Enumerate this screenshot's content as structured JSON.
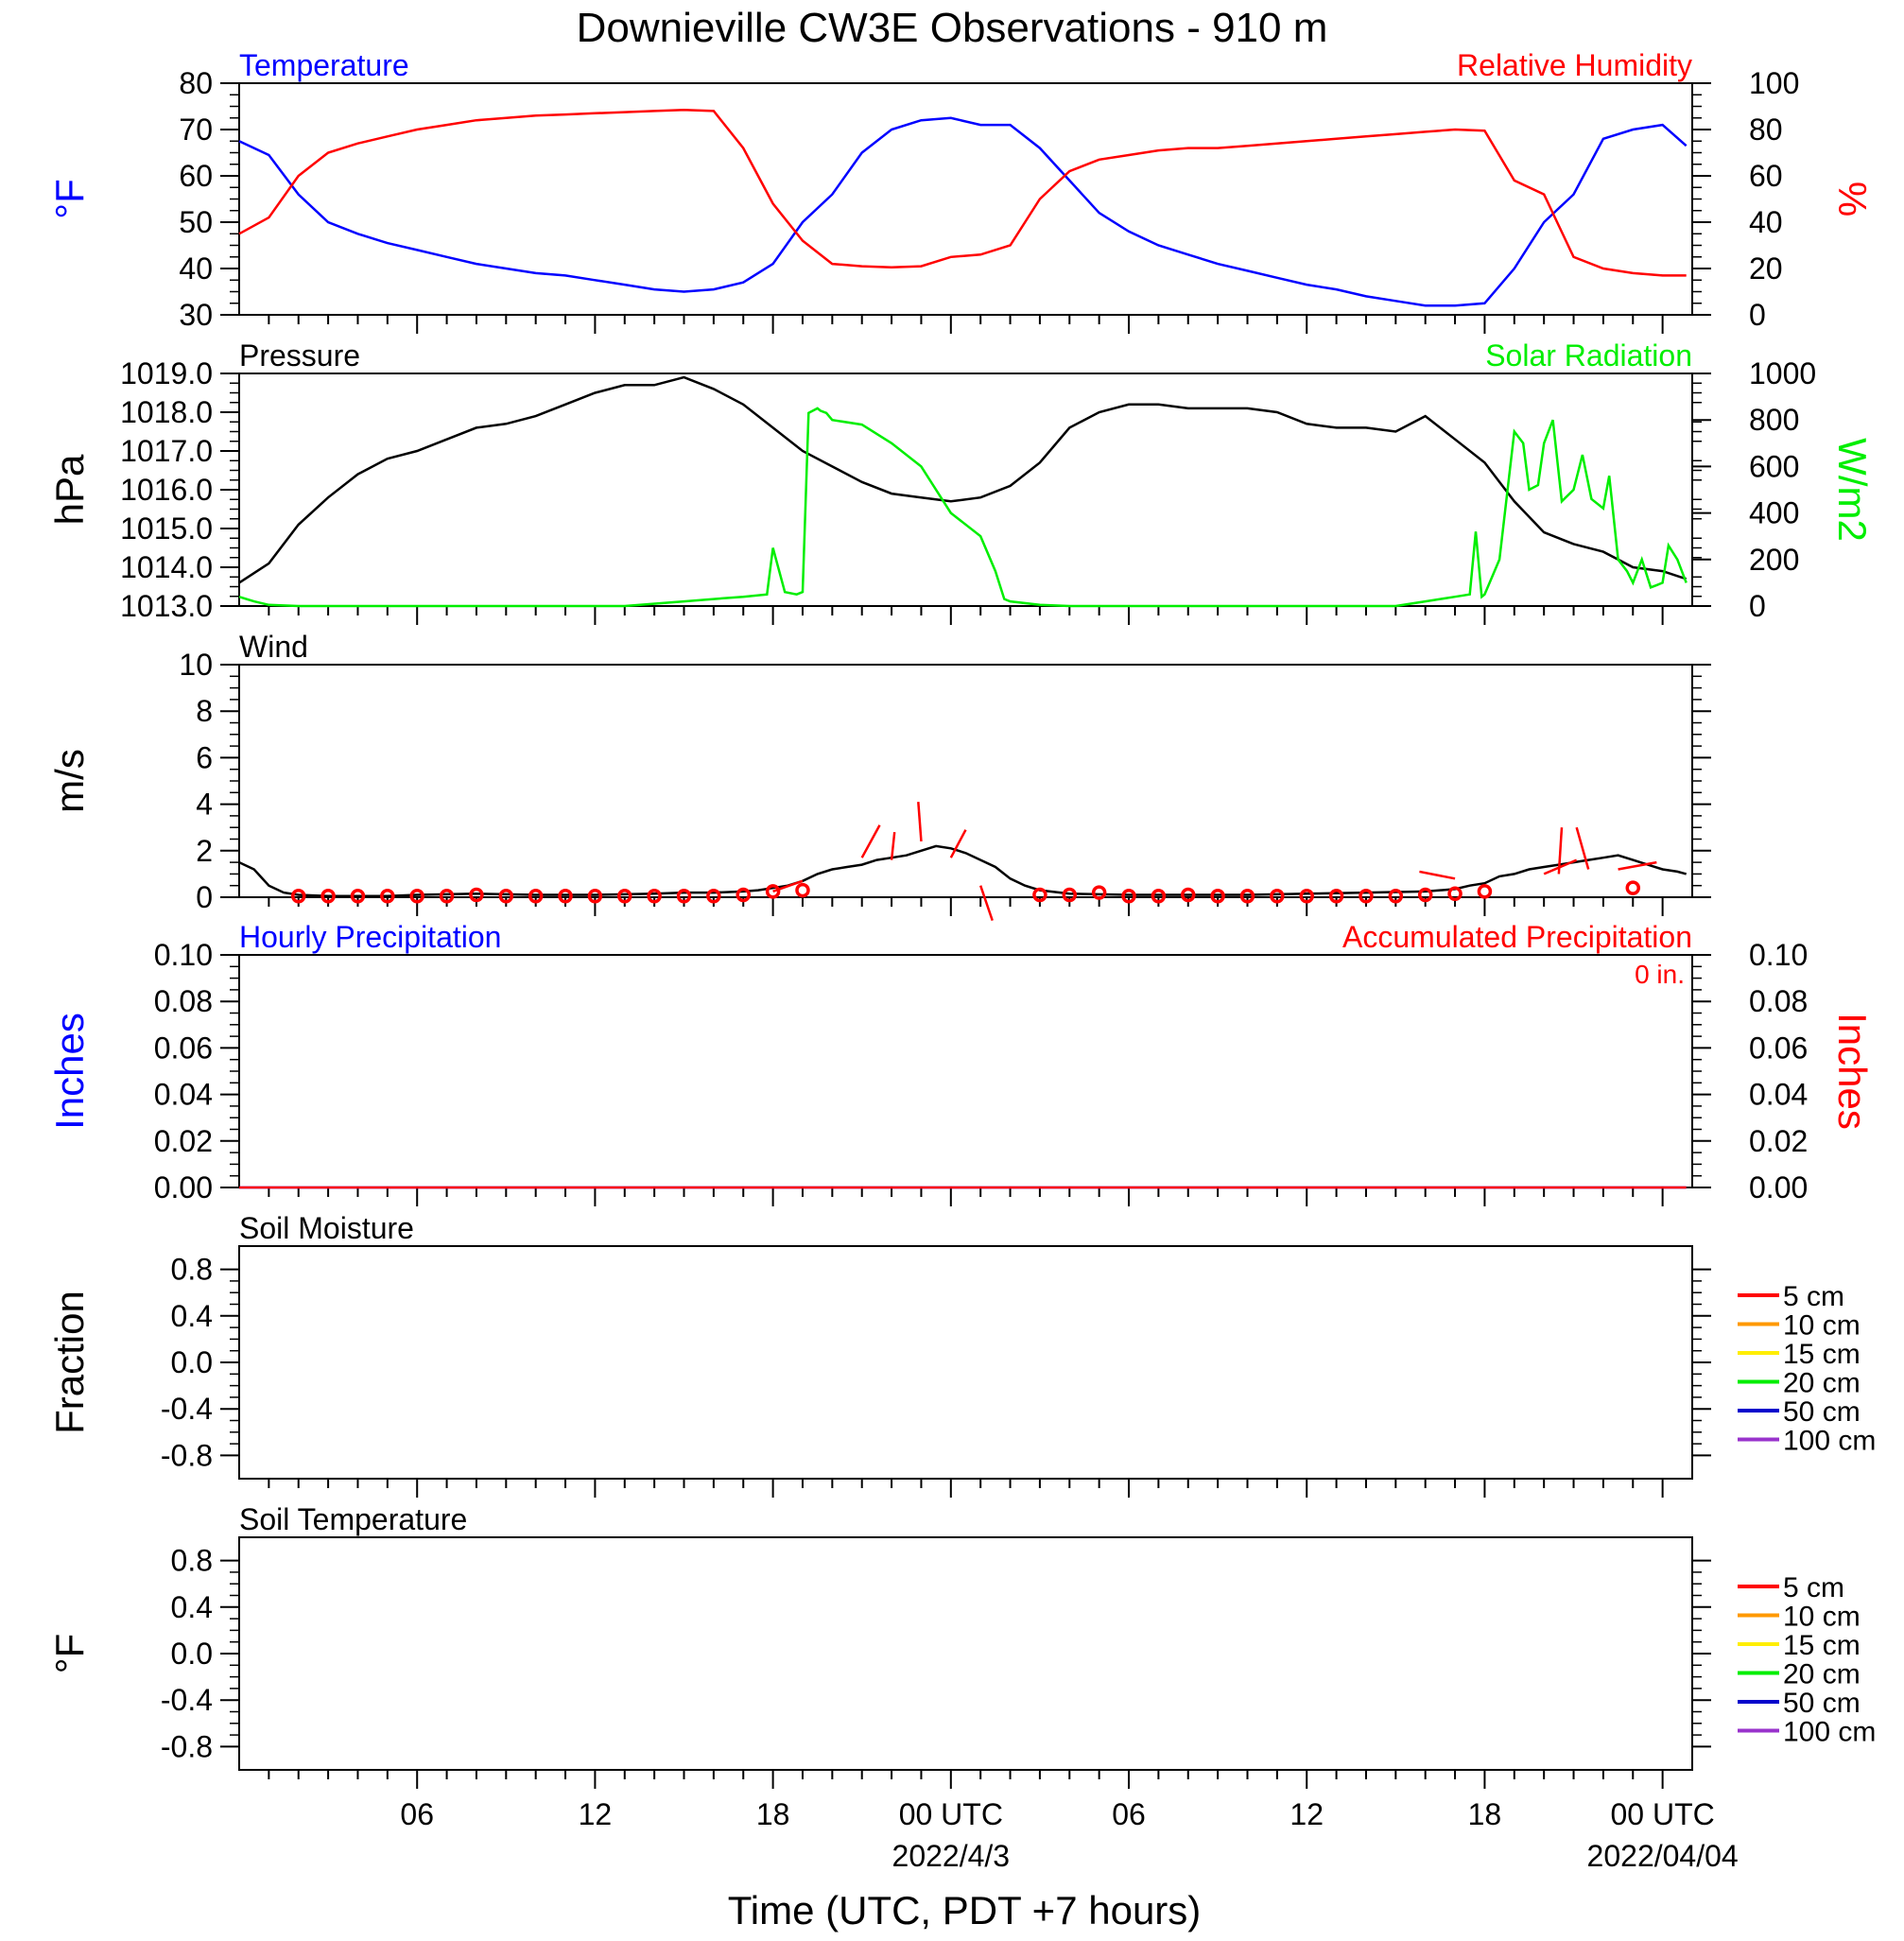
{
  "title": "Downieville CW3E Observations - 910 m",
  "xlabel": "Time (UTC, PDT +7 hours)",
  "x_ticks": {
    "labels": [
      "06",
      "12",
      "18",
      "00 UTC",
      "06",
      "12",
      "18",
      "00 UTC"
    ],
    "hours": [
      6,
      12,
      18,
      24,
      30,
      36,
      42,
      48
    ],
    "dates": [
      {
        "hour": 24,
        "text": "2022/4/3"
      },
      {
        "hour": 48,
        "text": "2022/04/04"
      }
    ]
  },
  "x_range_hours": [
    0,
    49
  ],
  "colors": {
    "temperature": "#0000ff",
    "humidity": "#ff0000",
    "pressure": "#000000",
    "solar": "#00ee00",
    "wind": "#000000",
    "wind_barbs": "#ff0000",
    "hourly_precip": "#0000ff",
    "accum_precip": "#ff0000",
    "soil_5": "#ff0000",
    "soil_10": "#ff9900",
    "soil_15": "#ffee00",
    "soil_20": "#00ee00",
    "soil_50": "#0000cc",
    "soil_100": "#9933cc"
  },
  "chart_data": [
    {
      "type": "line",
      "left_title": "Temperature",
      "right_title": "Relative Humidity",
      "ylabel_left": "°F",
      "ylabel_right": "%",
      "ylim_left": [
        30,
        80
      ],
      "yticks_left": [
        "30",
        "40",
        "50",
        "60",
        "70",
        "80"
      ],
      "ylim_right": [
        0,
        100
      ],
      "yticks_right": [
        "0",
        "20",
        "40",
        "60",
        "80",
        "100"
      ],
      "series": [
        {
          "name": "Temperature",
          "axis": "left",
          "color": "#0000ff",
          "x": [
            0,
            1,
            2,
            3,
            4,
            5,
            6,
            7,
            8,
            9,
            10,
            11,
            12,
            13,
            14,
            15,
            16,
            17,
            18,
            19,
            20,
            21,
            22,
            23,
            24,
            25,
            26,
            27,
            28,
            29,
            30,
            31,
            32,
            33,
            34,
            35,
            36,
            37,
            38,
            39,
            40,
            41,
            42,
            43,
            44,
            45,
            46,
            47,
            48,
            48.8
          ],
          "y": [
            67.5,
            64.5,
            56,
            50,
            47.5,
            45.5,
            44,
            42.5,
            41,
            40,
            39,
            38.5,
            37.5,
            36.5,
            35.5,
            35,
            35.5,
            37,
            41,
            50,
            56,
            65,
            70,
            72,
            72.5,
            71,
            71,
            66,
            59,
            52,
            48,
            45,
            43,
            41,
            39.5,
            38,
            36.5,
            35.5,
            34,
            33,
            32,
            32,
            32.5,
            40,
            50,
            56,
            68,
            70,
            71,
            66.5
          ]
        },
        {
          "name": "Relative Humidity",
          "axis": "right",
          "color": "#ff0000",
          "x": [
            0,
            1,
            2,
            3,
            4,
            5,
            6,
            7,
            8,
            9,
            10,
            11,
            12,
            13,
            14,
            15,
            16,
            17,
            18,
            19,
            20,
            21,
            22,
            23,
            24,
            25,
            26,
            27,
            28,
            29,
            30,
            31,
            32,
            33,
            34,
            35,
            36,
            37,
            38,
            39,
            40,
            41,
            42,
            43,
            44,
            45,
            46,
            47,
            48,
            48.8
          ],
          "y": [
            35,
            42,
            60,
            70,
            74,
            77,
            80,
            82,
            84,
            85,
            86,
            86.5,
            87,
            87.5,
            88,
            88.5,
            88,
            72,
            48,
            32,
            22,
            21,
            20.5,
            21,
            25,
            26,
            30,
            50,
            62,
            67,
            69,
            71,
            72,
            72,
            73,
            74,
            75,
            76,
            77,
            78,
            79,
            80,
            79.5,
            58,
            52,
            25,
            20,
            18,
            17,
            17
          ]
        }
      ]
    },
    {
      "type": "line",
      "left_title": "Pressure",
      "right_title": "Solar Radiation",
      "ylabel_left": "hPa",
      "ylabel_right": "W/m2",
      "ylim_left": [
        1013,
        1019
      ],
      "yticks_left": [
        "1013.0",
        "1014.0",
        "1015.0",
        "1016.0",
        "1017.0",
        "1018.0",
        "1019.0"
      ],
      "ylim_right": [
        0,
        1000
      ],
      "yticks_right": [
        "0",
        "200",
        "400",
        "600",
        "800",
        "1000"
      ],
      "series": [
        {
          "name": "Pressure",
          "axis": "left",
          "color": "#000000",
          "x": [
            0,
            1,
            2,
            3,
            4,
            5,
            6,
            7,
            8,
            9,
            10,
            11,
            12,
            13,
            14,
            15,
            16,
            17,
            18,
            19,
            20,
            21,
            22,
            23,
            24,
            25,
            26,
            27,
            28,
            29,
            30,
            31,
            32,
            33,
            34,
            35,
            36,
            37,
            38,
            39,
            40,
            41,
            42,
            43,
            44,
            45,
            46,
            47,
            48,
            48.8
          ],
          "y": [
            1013.6,
            1014.1,
            1015.1,
            1015.8,
            1016.4,
            1016.8,
            1017.0,
            1017.3,
            1017.6,
            1017.7,
            1017.9,
            1018.2,
            1018.5,
            1018.7,
            1018.7,
            1018.9,
            1018.6,
            1018.2,
            1017.6,
            1017.0,
            1016.6,
            1016.2,
            1015.9,
            1015.8,
            1015.7,
            1015.8,
            1016.1,
            1016.7,
            1017.6,
            1018.0,
            1018.2,
            1018.2,
            1018.1,
            1018.1,
            1018.1,
            1018.0,
            1017.7,
            1017.6,
            1017.6,
            1017.5,
            1017.9,
            1017.3,
            1016.7,
            1015.7,
            1014.9,
            1014.6,
            1014.4,
            1014.0,
            1013.9,
            1013.7
          ]
        },
        {
          "name": "Solar Radiation",
          "axis": "right",
          "color": "#00ee00",
          "x": [
            0,
            0.5,
            1,
            2,
            10,
            13,
            15,
            16,
            17,
            17.8,
            18,
            18.4,
            18.8,
            19,
            19.2,
            19.5,
            19.6,
            19.8,
            20,
            21,
            22,
            23,
            24,
            25,
            25.5,
            25.8,
            26,
            27,
            28,
            38,
            39,
            40,
            41,
            41.5,
            41.7,
            41.9,
            42,
            42.5,
            43,
            43.3,
            43.5,
            43.8,
            44,
            44.3,
            44.6,
            45,
            45.3,
            45.6,
            46,
            46.2,
            46.5,
            46.8,
            47,
            47.3,
            47.6,
            47.8,
            48,
            48.2,
            48.5,
            48.8
          ],
          "y": [
            40,
            20,
            5,
            0,
            0,
            0,
            20,
            30,
            40,
            50,
            250,
            60,
            50,
            60,
            830,
            850,
            840,
            830,
            800,
            780,
            700,
            600,
            400,
            300,
            150,
            30,
            20,
            5,
            0,
            0,
            0,
            20,
            40,
            50,
            320,
            40,
            50,
            200,
            750,
            700,
            500,
            520,
            700,
            800,
            450,
            500,
            650,
            460,
            420,
            560,
            200,
            150,
            100,
            200,
            80,
            90,
            100,
            260,
            200,
            100
          ]
        }
      ]
    },
    {
      "type": "line",
      "left_title": "Wind",
      "ylabel_left": "m/s",
      "ylim_left": [
        0,
        10
      ],
      "yticks_left": [
        "0",
        "2",
        "4",
        "6",
        "8",
        "10"
      ],
      "series": [
        {
          "name": "Wind",
          "axis": "left",
          "color": "#000000",
          "x": [
            0,
            0.5,
            1,
            1.5,
            2,
            3,
            4,
            5,
            6,
            8,
            10,
            12,
            14,
            15,
            16,
            17,
            17.5,
            18,
            18.5,
            19,
            19.5,
            20,
            20.5,
            21,
            21.5,
            22,
            22.5,
            23,
            23.5,
            24,
            24.5,
            25,
            25.5,
            26,
            26.5,
            27,
            28,
            30,
            32,
            34,
            36,
            38,
            40,
            41,
            41.5,
            42,
            42.5,
            43,
            43.5,
            44,
            44.5,
            45,
            45.5,
            46,
            46.5,
            47,
            47.5,
            48,
            48.5,
            48.8
          ],
          "y": [
            1.5,
            1.2,
            0.5,
            0.2,
            0.1,
            0.05,
            0.05,
            0.05,
            0.1,
            0.15,
            0.1,
            0.1,
            0.15,
            0.2,
            0.2,
            0.25,
            0.3,
            0.4,
            0.5,
            0.7,
            1.0,
            1.2,
            1.3,
            1.4,
            1.6,
            1.7,
            1.8,
            2.0,
            2.2,
            2.1,
            1.9,
            1.6,
            1.3,
            0.8,
            0.5,
            0.3,
            0.15,
            0.1,
            0.1,
            0.1,
            0.15,
            0.2,
            0.25,
            0.35,
            0.5,
            0.6,
            0.9,
            1.0,
            1.2,
            1.3,
            1.4,
            1.5,
            1.6,
            1.7,
            1.8,
            1.6,
            1.4,
            1.2,
            1.1,
            1.0
          ]
        },
        {
          "name": "Wind barbs",
          "axis": "left",
          "color": "#ff0000",
          "markers": "circle",
          "x": [
            2,
            3,
            4,
            5,
            6,
            7,
            8,
            9,
            10,
            11,
            12,
            13,
            14,
            15,
            16,
            17,
            18,
            19,
            27,
            28,
            29,
            30,
            31,
            32,
            33,
            34,
            35,
            36,
            37,
            38,
            39,
            40,
            41,
            42,
            47
          ],
          "y": [
            0.05,
            0.05,
            0.05,
            0.05,
            0.05,
            0.05,
            0.1,
            0.05,
            0.05,
            0.05,
            0.05,
            0.05,
            0.05,
            0.05,
            0.05,
            0.1,
            0.25,
            0.3,
            0.1,
            0.1,
            0.2,
            0.05,
            0.05,
            0.1,
            0.05,
            0.05,
            0.05,
            0.05,
            0.05,
            0.05,
            0.05,
            0.1,
            0.15,
            0.25,
            0.4
          ],
          "sticks": [
            [
              18,
              0.25,
              19,
              0.7
            ],
            [
              21,
              1.7,
              21.6,
              3.1
            ],
            [
              22,
              1.6,
              22.1,
              2.8
            ],
            [
              23,
              2.4,
              22.9,
              4.1
            ],
            [
              24,
              1.7,
              24.5,
              2.9
            ],
            [
              25,
              0.5,
              25.4,
              -1.0
            ],
            [
              41,
              0.8,
              39.8,
              1.1
            ],
            [
              44,
              1.0,
              45.1,
              1.6
            ],
            [
              44.5,
              1.0,
              44.6,
              3.0
            ],
            [
              45.5,
              1.2,
              45.1,
              3.0
            ],
            [
              46.5,
              1.2,
              47.8,
              1.5
            ]
          ]
        }
      ]
    },
    {
      "type": "line",
      "left_title": "Hourly Precipitation",
      "right_title": "Accumulated Precipitation",
      "annotation": "0 in.",
      "ylabel_left": "Inches",
      "ylabel_right": "Inches",
      "ylim_left": [
        0,
        0.1
      ],
      "yticks_left": [
        "0.00",
        "0.02",
        "0.04",
        "0.06",
        "0.08",
        "0.10"
      ],
      "ylim_right": [
        0,
        0.1
      ],
      "yticks_right": [
        "0.00",
        "0.02",
        "0.04",
        "0.06",
        "0.08",
        "0.10"
      ],
      "series": [
        {
          "name": "Hourly Precipitation",
          "axis": "left",
          "color": "#0000ff",
          "x": [
            0,
            48.8
          ],
          "y": [
            0,
            0
          ]
        },
        {
          "name": "Accumulated Precipitation",
          "axis": "right",
          "color": "#ff0000",
          "x": [
            0,
            48.8
          ],
          "y": [
            0,
            0
          ]
        }
      ]
    },
    {
      "type": "line",
      "left_title": "Soil Moisture",
      "ylabel_left": "Fraction",
      "ylim_left": [
        -1,
        1
      ],
      "yticks_left": [
        "-0.8",
        "-0.4",
        "0.0",
        "0.4",
        "0.8"
      ],
      "ytick_values": [
        -0.8,
        -0.4,
        0,
        0.4,
        0.8
      ],
      "legend": [
        {
          "label": "5 cm",
          "color": "#ff0000"
        },
        {
          "label": "10 cm",
          "color": "#ff9900"
        },
        {
          "label": "15 cm",
          "color": "#ffee00"
        },
        {
          "label": "20 cm",
          "color": "#00ee00"
        },
        {
          "label": "50 cm",
          "color": "#0000cc"
        },
        {
          "label": "100 cm",
          "color": "#9933cc"
        }
      ],
      "series": []
    },
    {
      "type": "line",
      "left_title": "Soil Temperature",
      "ylabel_left": "°F",
      "ylim_left": [
        -1,
        1
      ],
      "yticks_left": [
        "-0.8",
        "-0.4",
        "0.0",
        "0.4",
        "0.8"
      ],
      "ytick_values": [
        -0.8,
        -0.4,
        0,
        0.4,
        0.8
      ],
      "legend": [
        {
          "label": "5 cm",
          "color": "#ff0000"
        },
        {
          "label": "10 cm",
          "color": "#ff9900"
        },
        {
          "label": "15 cm",
          "color": "#ffee00"
        },
        {
          "label": "20 cm",
          "color": "#00ee00"
        },
        {
          "label": "50 cm",
          "color": "#0000cc"
        },
        {
          "label": "100 cm",
          "color": "#9933cc"
        }
      ],
      "series": []
    }
  ]
}
